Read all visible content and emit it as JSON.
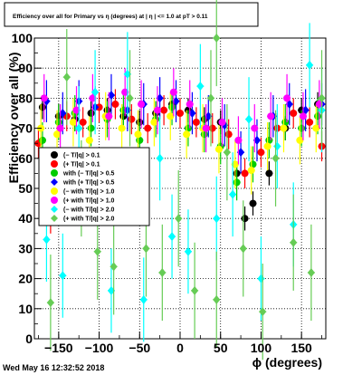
{
  "chart_data": {
    "type": "scatter",
    "title": "Efficiency over all for Primary vs η (degrees) at | η | <= 1.0 at pT > 0.11",
    "xlabel": "ϕ (degrees)",
    "ylabel": "Efficiency over all (%)",
    "xlim": [
      -180,
      180
    ],
    "ylim": [
      0,
      100
    ],
    "x_ticks": [
      -150,
      -100,
      -50,
      0,
      50,
      100,
      150
    ],
    "y_ticks": [
      0,
      10,
      20,
      30,
      40,
      50,
      60,
      70,
      80,
      90,
      100
    ],
    "grid": true,
    "legend_position": "left-center",
    "footer_timestamp": "Wed May 16 12:32:52 2018",
    "series": [
      {
        "label": "(− T/|q| > 0.1",
        "color": "#000000",
        "marker": "circle",
        "spread": 4,
        "points": [
          [
            -170,
            77
          ],
          [
            -150,
            74
          ],
          [
            -130,
            73
          ],
          [
            -110,
            75
          ],
          [
            -90,
            76
          ],
          [
            -70,
            74
          ],
          [
            -50,
            72
          ],
          [
            -30,
            75
          ],
          [
            -10,
            78
          ],
          [
            10,
            76
          ],
          [
            30,
            73
          ],
          [
            50,
            72
          ],
          [
            70,
            55
          ],
          [
            80,
            40
          ],
          [
            90,
            45
          ],
          [
            110,
            55
          ],
          [
            130,
            70
          ],
          [
            150,
            76
          ],
          [
            170,
            78
          ]
        ]
      },
      {
        "label": "(+ T/|q| > 0.1",
        "color": "#ff0000",
        "marker": "circle",
        "spread": 5,
        "points": [
          [
            -175,
            65
          ],
          [
            -160,
            40
          ],
          [
            -140,
            74
          ],
          [
            -120,
            72
          ],
          [
            -100,
            77
          ],
          [
            -80,
            78
          ],
          [
            -60,
            73
          ],
          [
            -40,
            70
          ],
          [
            -20,
            76
          ],
          [
            0,
            75
          ],
          [
            20,
            72
          ],
          [
            40,
            70
          ],
          [
            60,
            68
          ],
          [
            80,
            55
          ],
          [
            100,
            62
          ],
          [
            120,
            70
          ],
          [
            140,
            75
          ],
          [
            160,
            72
          ],
          [
            175,
            64
          ]
        ]
      },
      {
        "label": "with (− T/|q| > 0.5",
        "color": "#00cc00",
        "marker": "circle",
        "spread": 6,
        "points": [
          [
            -170,
            66
          ],
          [
            -150,
            72
          ],
          [
            -130,
            75
          ],
          [
            -110,
            70
          ],
          [
            -90,
            73
          ],
          [
            -70,
            76
          ],
          [
            -50,
            66
          ],
          [
            -30,
            73
          ],
          [
            -10,
            77
          ],
          [
            10,
            70
          ],
          [
            30,
            68
          ],
          [
            50,
            64
          ],
          [
            70,
            52
          ],
          [
            90,
            58
          ],
          [
            110,
            66
          ],
          [
            130,
            72
          ],
          [
            150,
            70
          ],
          [
            170,
            74
          ]
        ]
      },
      {
        "label": "with (+ T/|q| > 0.5",
        "color": "#0000ff",
        "marker": "diamond",
        "spread": 7,
        "points": [
          [
            -165,
            79
          ],
          [
            -145,
            75
          ],
          [
            -125,
            79
          ],
          [
            -105,
            77
          ],
          [
            -85,
            81
          ],
          [
            -65,
            76
          ],
          [
            -45,
            78
          ],
          [
            -25,
            80
          ],
          [
            -5,
            79
          ],
          [
            15,
            75
          ],
          [
            35,
            74
          ],
          [
            55,
            71
          ],
          [
            75,
            62
          ],
          [
            95,
            66
          ],
          [
            115,
            74
          ],
          [
            135,
            78
          ],
          [
            155,
            76
          ],
          [
            175,
            78
          ]
        ]
      },
      {
        "label": "(− with T/|q| > 1.0",
        "color": "#ffff00",
        "marker": "circle",
        "spread": 8,
        "points": [
          [
            -172,
            70
          ],
          [
            -152,
            68
          ],
          [
            -132,
            72
          ],
          [
            -112,
            66
          ],
          [
            -92,
            74
          ],
          [
            -72,
            70
          ],
          [
            -52,
            68
          ],
          [
            -32,
            72
          ],
          [
            -12,
            74
          ],
          [
            8,
            68
          ],
          [
            28,
            70
          ],
          [
            48,
            63
          ],
          [
            68,
            58
          ],
          [
            88,
            56
          ],
          [
            108,
            64
          ],
          [
            128,
            70
          ],
          [
            148,
            66
          ],
          [
            168,
            70
          ]
        ]
      },
      {
        "label": "(+ with T/|q| > 1.0",
        "color": "#ff00ff",
        "marker": "circle",
        "spread": 8,
        "points": [
          [
            -168,
            80
          ],
          [
            -148,
            70
          ],
          [
            -128,
            76
          ],
          [
            -108,
            80
          ],
          [
            -88,
            74
          ],
          [
            -68,
            82
          ],
          [
            -48,
            78
          ],
          [
            -28,
            76
          ],
          [
            -8,
            82
          ],
          [
            12,
            78
          ],
          [
            32,
            70
          ],
          [
            52,
            72
          ],
          [
            72,
            66
          ],
          [
            92,
            70
          ],
          [
            112,
            74
          ],
          [
            132,
            80
          ],
          [
            152,
            74
          ],
          [
            172,
            78
          ]
        ]
      },
      {
        "label": "(− with T/|q| > 2.0",
        "color": "#00ffff",
        "marker": "diamond",
        "spread": 14,
        "points": [
          [
            -165,
            33
          ],
          [
            -145,
            21
          ],
          [
            -125,
            70
          ],
          [
            -105,
            82
          ],
          [
            -85,
            16
          ],
          [
            -65,
            88
          ],
          [
            -45,
            13
          ],
          [
            -25,
            60
          ],
          [
            -10,
            34
          ],
          [
            10,
            29
          ],
          [
            25,
            84
          ],
          [
            45,
            40
          ],
          [
            65,
            48
          ],
          [
            85,
            73
          ],
          [
            100,
            20
          ],
          [
            120,
            64
          ],
          [
            140,
            38
          ],
          [
            160,
            91
          ],
          [
            175,
            76
          ]
        ]
      },
      {
        "label": "(+ with T/|q| > 2.0",
        "color": "#66cc55",
        "marker": "diamond",
        "spread": 16,
        "points": [
          [
            -160,
            12
          ],
          [
            -140,
            87
          ],
          [
            -122,
            50
          ],
          [
            -102,
            29
          ],
          [
            -82,
            24
          ],
          [
            -62,
            80
          ],
          [
            -42,
            30
          ],
          [
            -22,
            22
          ],
          [
            -2,
            40
          ],
          [
            18,
            16
          ],
          [
            38,
            80
          ],
          [
            45,
            100
          ],
          [
            45,
            13
          ],
          [
            58,
            62
          ],
          [
            78,
            30
          ],
          [
            102,
            9
          ],
          [
            118,
            60
          ],
          [
            140,
            32
          ],
          [
            162,
            22
          ],
          [
            175,
            80
          ]
        ]
      }
    ]
  }
}
